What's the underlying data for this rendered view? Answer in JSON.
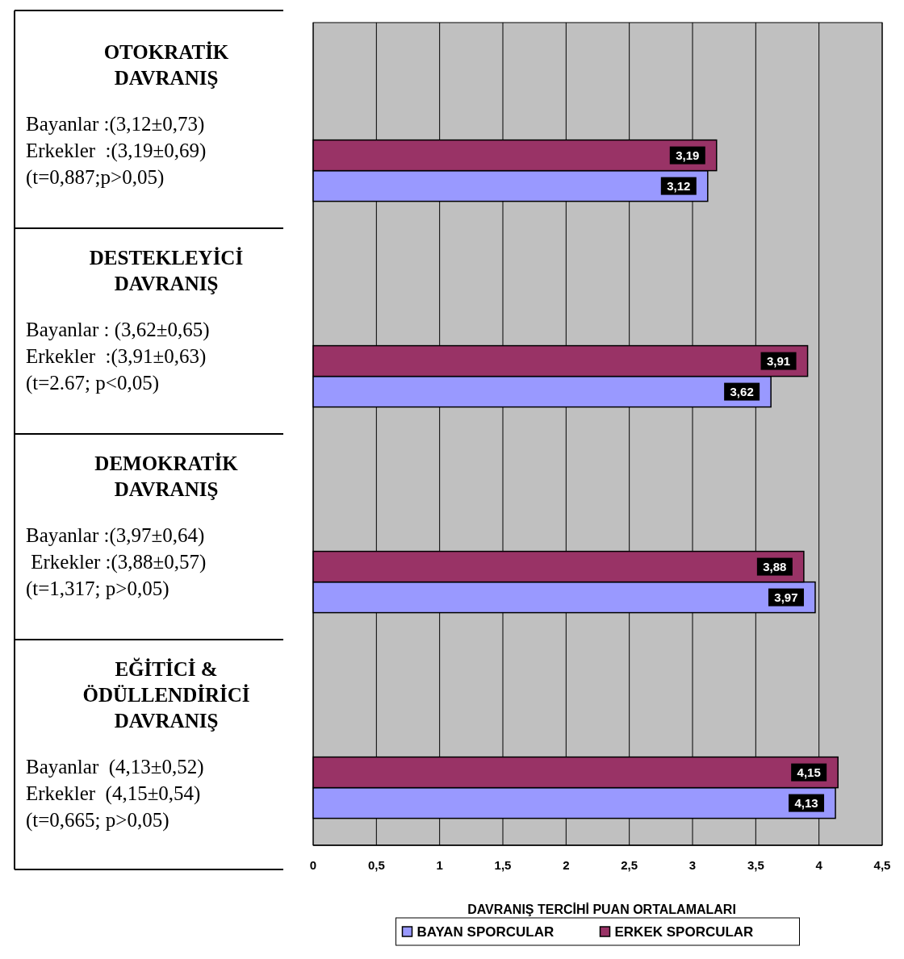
{
  "chart_data": {
    "type": "bar",
    "orientation": "horizontal",
    "categories": [
      "OTOKRATİK\nDAVRANIŞ",
      "DESTEKLEYİCİ\nDAVRANIŞ",
      "DEMOKRATİK\nDAVRANIŞ",
      "EĞİTİCİ &\nÖDÜLLENDİRİCİ\nDAVRANIŞ"
    ],
    "series": [
      {
        "name": "BAYAN SPORCULAR",
        "color": "#9999ff",
        "values": [
          3.12,
          3.62,
          3.97,
          4.13
        ]
      },
      {
        "name": "ERKEK SPORCULAR",
        "color": "#993366",
        "values": [
          3.19,
          3.91,
          3.88,
          4.15
        ]
      }
    ],
    "xlabel": "DAVRANIŞ TERCİHİ PUAN ORTALAMALARI",
    "xlim": [
      0,
      4.5
    ],
    "xticks": [
      0,
      {
        "value": 0.5,
        "label": "0,5"
      },
      1,
      {
        "value": 1.5,
        "label": "1,5"
      },
      2,
      {
        "value": 2.5,
        "label": "2,5"
      },
      3,
      {
        "value": 3.5,
        "label": "3,5"
      },
      4,
      {
        "value": 4.5,
        "label": "4,5"
      }
    ],
    "value_labels": [
      [
        "3,12",
        "3,62",
        "3,97",
        "4,13"
      ],
      [
        "3,19",
        "3,91",
        "3,88",
        "4,15"
      ]
    ],
    "annotations": [
      "Bayanlar :(3,12±0,73)\nErkekler  :(3,19±0,69)\n(t=0,887;p>0,05)",
      "Bayanlar : (3,62±0,65)\nErkekler  :(3,91±0,63)\n(t=2.67; p<0,05)",
      "Bayanlar :(3,97±0,64)\n Erkekler :(3,88±0,57)\n(t=1,317; p>0,05)",
      "Bayanlar  (4,13±0,52)\nErkekler  (4,15±0,54)\n(t=0,665; p>0,05)"
    ],
    "grid": "x",
    "legend": "bottom"
  }
}
